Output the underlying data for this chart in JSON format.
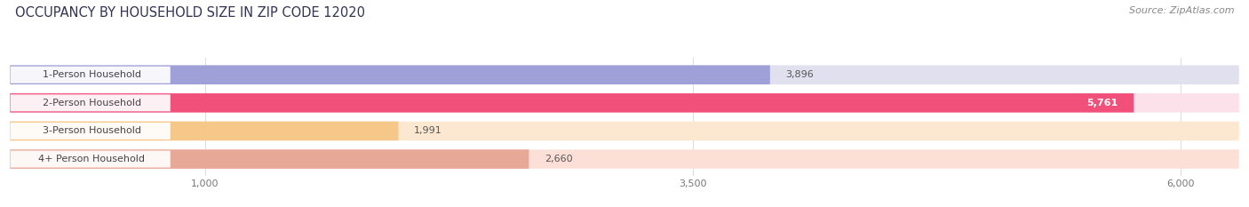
{
  "title": "OCCUPANCY BY HOUSEHOLD SIZE IN ZIP CODE 12020",
  "source": "Source: ZipAtlas.com",
  "categories": [
    "1-Person Household",
    "2-Person Household",
    "3-Person Household",
    "4+ Person Household"
  ],
  "values": [
    3896,
    5761,
    1991,
    2660
  ],
  "bar_colors": [
    "#a0a0d8",
    "#f0507a",
    "#f5c88a",
    "#e8a898"
  ],
  "bar_bg_colors": [
    "#e0e0ee",
    "#fce0ea",
    "#fce8d0",
    "#fce0d8"
  ],
  "value_labels": [
    "3,896",
    "5,761",
    "1,991",
    "2,660"
  ],
  "value_colors": [
    "#555555",
    "#ffffff",
    "#555555",
    "#555555"
  ],
  "xlim": [
    0,
    6300
  ],
  "xmin": 0,
  "xticks": [
    1000,
    3500,
    6000
  ],
  "xticklabels": [
    "1,000",
    "3,500",
    "6,000"
  ],
  "label_fontsize": 8,
  "value_fontsize": 8,
  "title_fontsize": 10.5,
  "source_fontsize": 8,
  "background_color": "#ffffff",
  "row_bg_color": "#f2f2f2"
}
